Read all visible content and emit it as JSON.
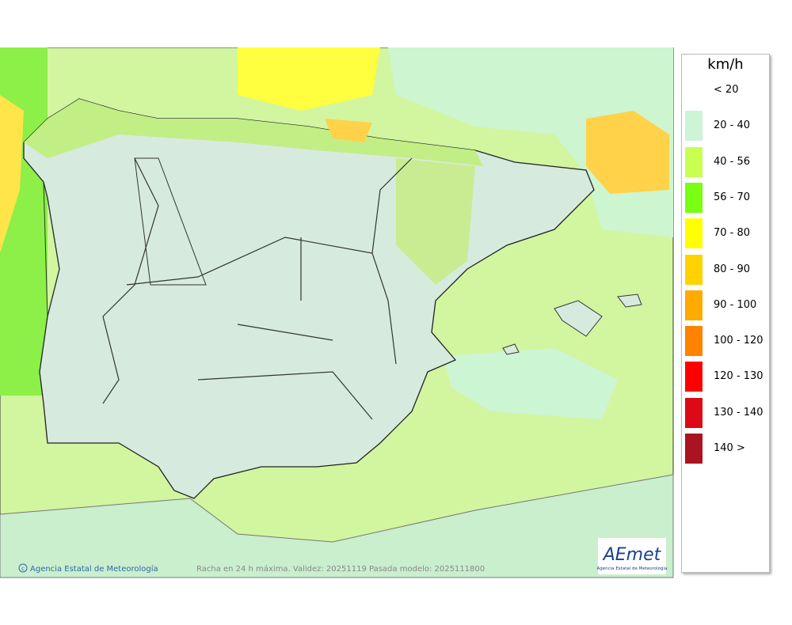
{
  "legend": {
    "title": "km/h",
    "items": [
      {
        "label": "< 20"
      },
      {
        "label": "20 - 40",
        "color": "#ccf5d6"
      },
      {
        "label": "40 - 56",
        "color": "#c8ff50"
      },
      {
        "label": "56 - 70",
        "color": "#78ff14"
      },
      {
        "label": "70 - 80",
        "color": "#ffff00"
      },
      {
        "label": "80 - 90",
        "color": "#ffd200"
      },
      {
        "label": "90 - 100",
        "color": "#ffaa00"
      },
      {
        "label": "100 - 120",
        "color": "#ff8200"
      },
      {
        "label": "120 - 130",
        "color": "#ff0000"
      },
      {
        "label": "130 - 140",
        "color": "#dc0a14"
      },
      {
        "label": "140 >",
        "color": "#aa1420"
      }
    ]
  },
  "footer": {
    "credit": "Agencia Estatal de Meteorología",
    "caption": "Racha en 24 h máxima. Validez: 20251119 Pasada modelo: 2025111800"
  },
  "logo": {
    "name": "AEmet",
    "subtitle": "Agencia Estatal de Meteorología"
  }
}
